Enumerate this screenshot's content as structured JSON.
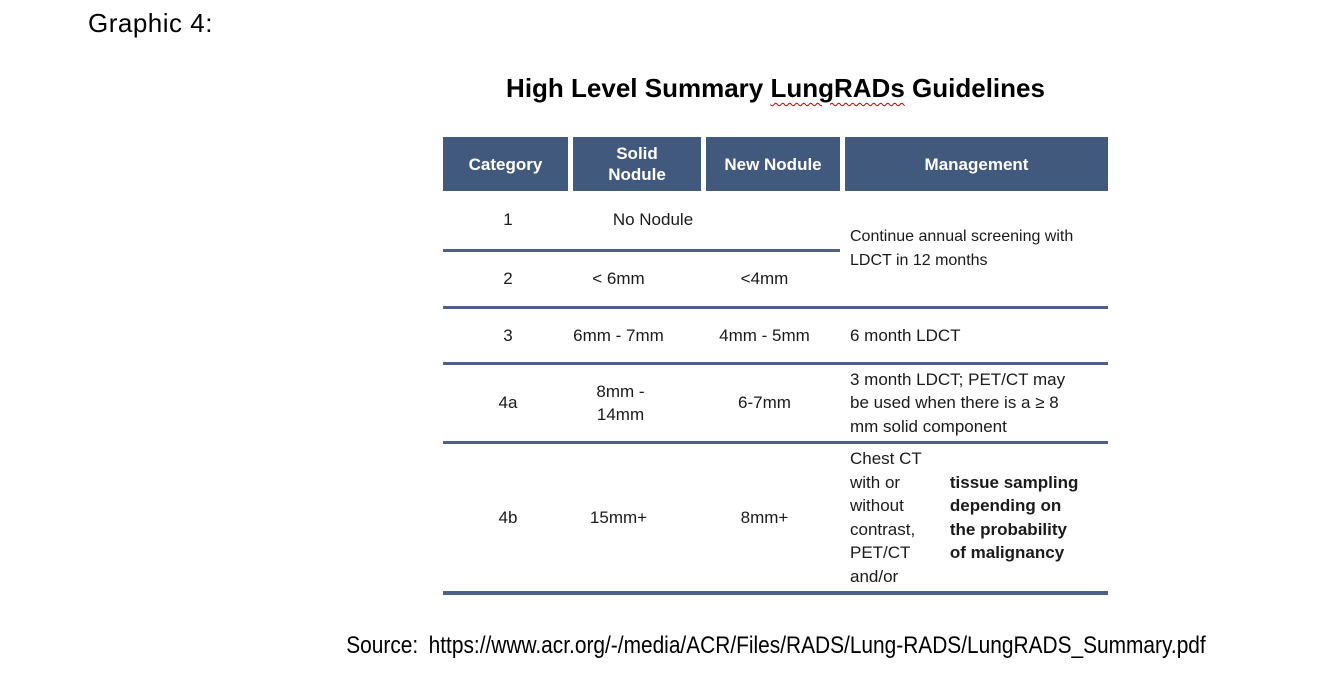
{
  "page": {
    "graphic_label": "Graphic 4:"
  },
  "title": {
    "pre": "High Level Summary ",
    "misspelled_word": "LungRADs",
    "post": " Guidelines"
  },
  "table": {
    "headers": [
      "Category",
      "Solid Nodule",
      "New Nodule",
      "Management"
    ],
    "row1": {
      "category": "1",
      "nodule_merged": "No Nodule"
    },
    "row1_2_management": "Continue annual screening with LDCT in 12 months",
    "row2": {
      "category": "2",
      "solid": "< 6mm",
      "new_nodule": "<4mm"
    },
    "row3": {
      "category": "3",
      "solid": "6mm - 7mm",
      "new_nodule": "4mm - 5mm",
      "management": "6 month LDCT"
    },
    "row4a": {
      "category": "4a",
      "solid": "8mm - 14mm",
      "new_nodule": "6-7mm",
      "management": "3 month LDCT; PET/CT may be used when there is a ≥ 8 mm solid component"
    },
    "row4b": {
      "category": "4b",
      "solid": "15mm+",
      "new_nodule": "8mm+",
      "management_regular": "Chest CT with or without contrast, PET/CT and/or ",
      "management_bold": "tissue sampling depending on the probability of malignancy"
    }
  },
  "source": {
    "label": "Source:",
    "url": "https://www.acr.org/-/media/ACR/Files/RADS/Lung-RADS/LungRADS_Summary.pdf"
  },
  "colors": {
    "header_bg": "#42597e",
    "divider": "#4d6088",
    "header_text": "#ffffff",
    "squiggle": "#c00000"
  }
}
